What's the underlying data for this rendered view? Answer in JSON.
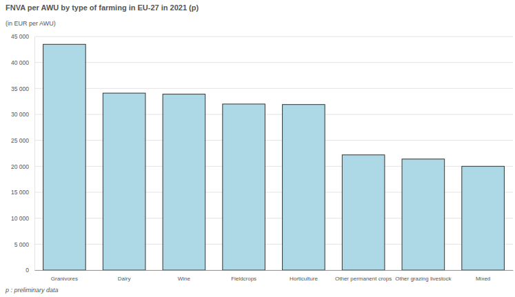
{
  "chart_data": {
    "type": "bar",
    "title": "FNVA per AWU by type of farming in EU-27 in 2021 (p)",
    "subtitle": "(in EUR per AWU)",
    "footnote": "p : preliminary data",
    "categories": [
      "Granivores",
      "Dairy",
      "Wine",
      "Fieldcrops",
      "Horticulture",
      "Other permanent crops",
      "Other grazing livestock",
      "Mixed"
    ],
    "values": [
      43500,
      34100,
      33900,
      32000,
      31900,
      22200,
      21400,
      20000
    ],
    "color": "#add8e6",
    "ylim": [
      0,
      45000
    ],
    "yticks": [
      0,
      {
        "value": 5000,
        "label": "5 000"
      },
      {
        "value": 10000,
        "label": "10 000"
      },
      {
        "value": 15000,
        "label": "15 000"
      },
      {
        "value": 20000,
        "label": "20 000"
      },
      {
        "value": 25000,
        "label": "25 000"
      },
      {
        "value": 30000,
        "label": "30 000"
      },
      {
        "value": 35000,
        "label": "35 000"
      },
      {
        "value": 40000,
        "label": "40 000"
      },
      {
        "value": 45000,
        "label": "45 000"
      }
    ],
    "grid": true
  }
}
